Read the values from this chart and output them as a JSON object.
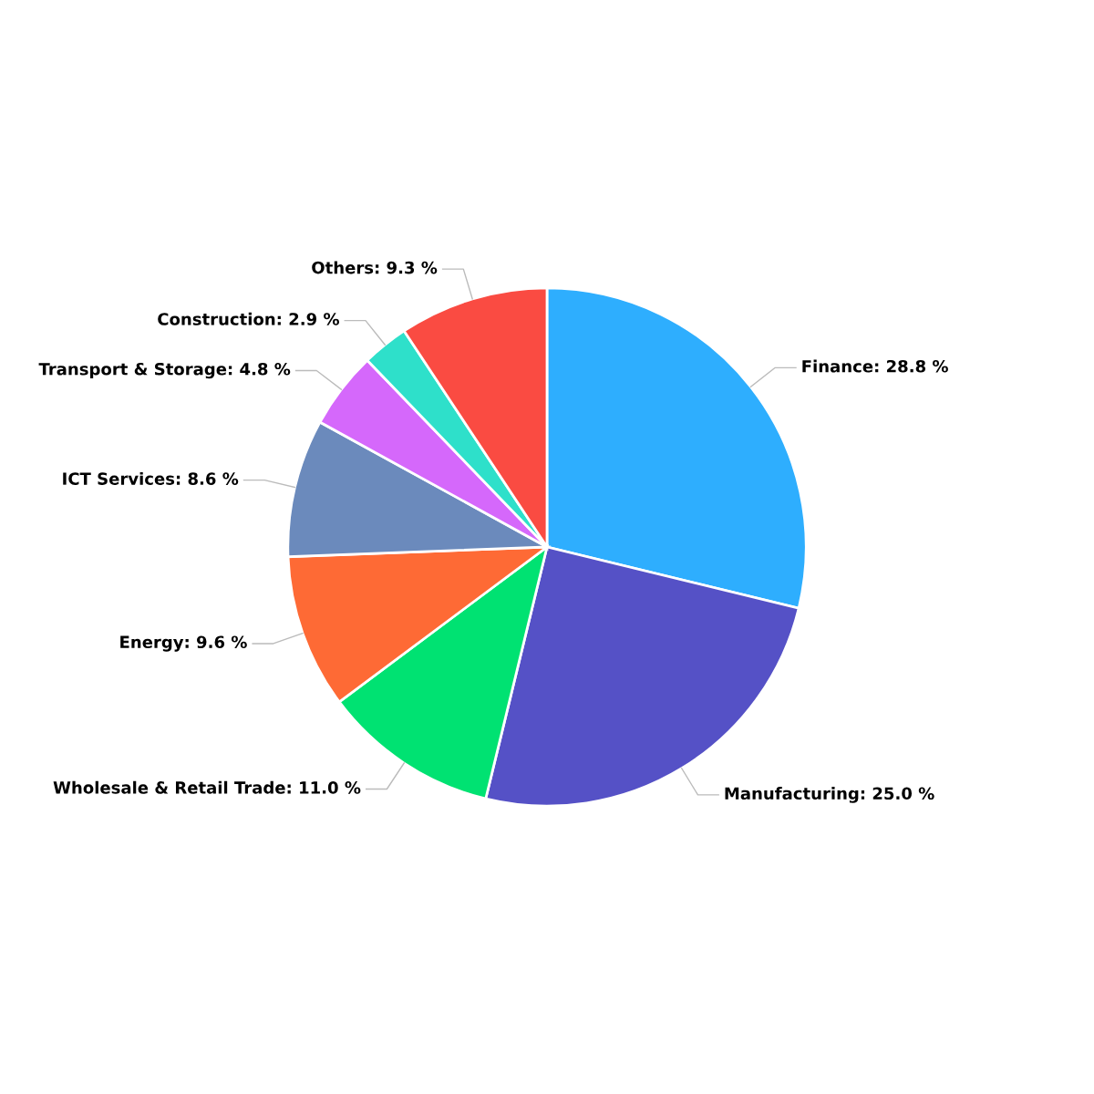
{
  "chart_data": {
    "type": "pie",
    "categories": [
      "Finance",
      "Manufacturing",
      "Wholesale & Retail Trade",
      "Energy",
      "ICT Services",
      "Transport & Storage",
      "Construction",
      "Others"
    ],
    "values": [
      28.8,
      25.0,
      11.0,
      9.6,
      8.6,
      4.8,
      2.9,
      9.3
    ],
    "value_labels": [
      "28.8 %",
      "25.0 %",
      "11.0 %",
      "9.6 %",
      "8.6 %",
      "4.8 %",
      "2.9 %",
      "9.3 %"
    ],
    "colors": [
      "#2eaefe",
      "#5551c6",
      "#00e272",
      "#fe6a35",
      "#6b8abc",
      "#d568fb",
      "#2ee0ca",
      "#fa4b42"
    ]
  }
}
